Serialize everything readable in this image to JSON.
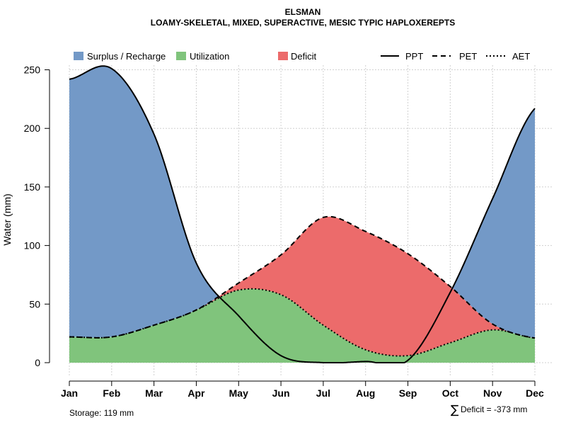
{
  "chart_data": {
    "type": "area",
    "title": "ELSMAN",
    "subtitle": "LOAMY-SKELETAL, MIXED, SUPERACTIVE, MESIC TYPIC HAPLOXEREPTS",
    "ylabel": "Water (mm)",
    "xlabel": "",
    "ylim": [
      0,
      260
    ],
    "yticks": [
      0,
      50,
      100,
      150,
      200,
      250
    ],
    "categories": [
      "Jan",
      "Feb",
      "Mar",
      "Apr",
      "May",
      "Jun",
      "Jul",
      "Aug",
      "Sep",
      "Oct",
      "Nov",
      "Dec"
    ],
    "grid": true,
    "legend_position": "top",
    "series": [
      {
        "name": "PPT",
        "style": "solid",
        "values": [
          242,
          251,
          195,
          85,
          40,
          6,
          0,
          1,
          2,
          60,
          140,
          217
        ]
      },
      {
        "name": "PET",
        "style": "dashed",
        "values": [
          22,
          22,
          32,
          45,
          68,
          92,
          124,
          112,
          93,
          65,
          33,
          21
        ]
      },
      {
        "name": "AET",
        "style": "dotted",
        "values": [
          22,
          22,
          32,
          45,
          62,
          58,
          32,
          11,
          6,
          17,
          28,
          21
        ]
      }
    ],
    "areas": [
      {
        "name": "Surplus / Recharge",
        "color": "#7399c7"
      },
      {
        "name": "Utilization",
        "color": "#80c47c"
      },
      {
        "name": "Deficit",
        "color": "#ec6b6b"
      }
    ],
    "annotations": {
      "storage": "Storage: 119 mm",
      "deficit_symbol": "∑",
      "deficit": "Deficit = -373 mm"
    }
  }
}
